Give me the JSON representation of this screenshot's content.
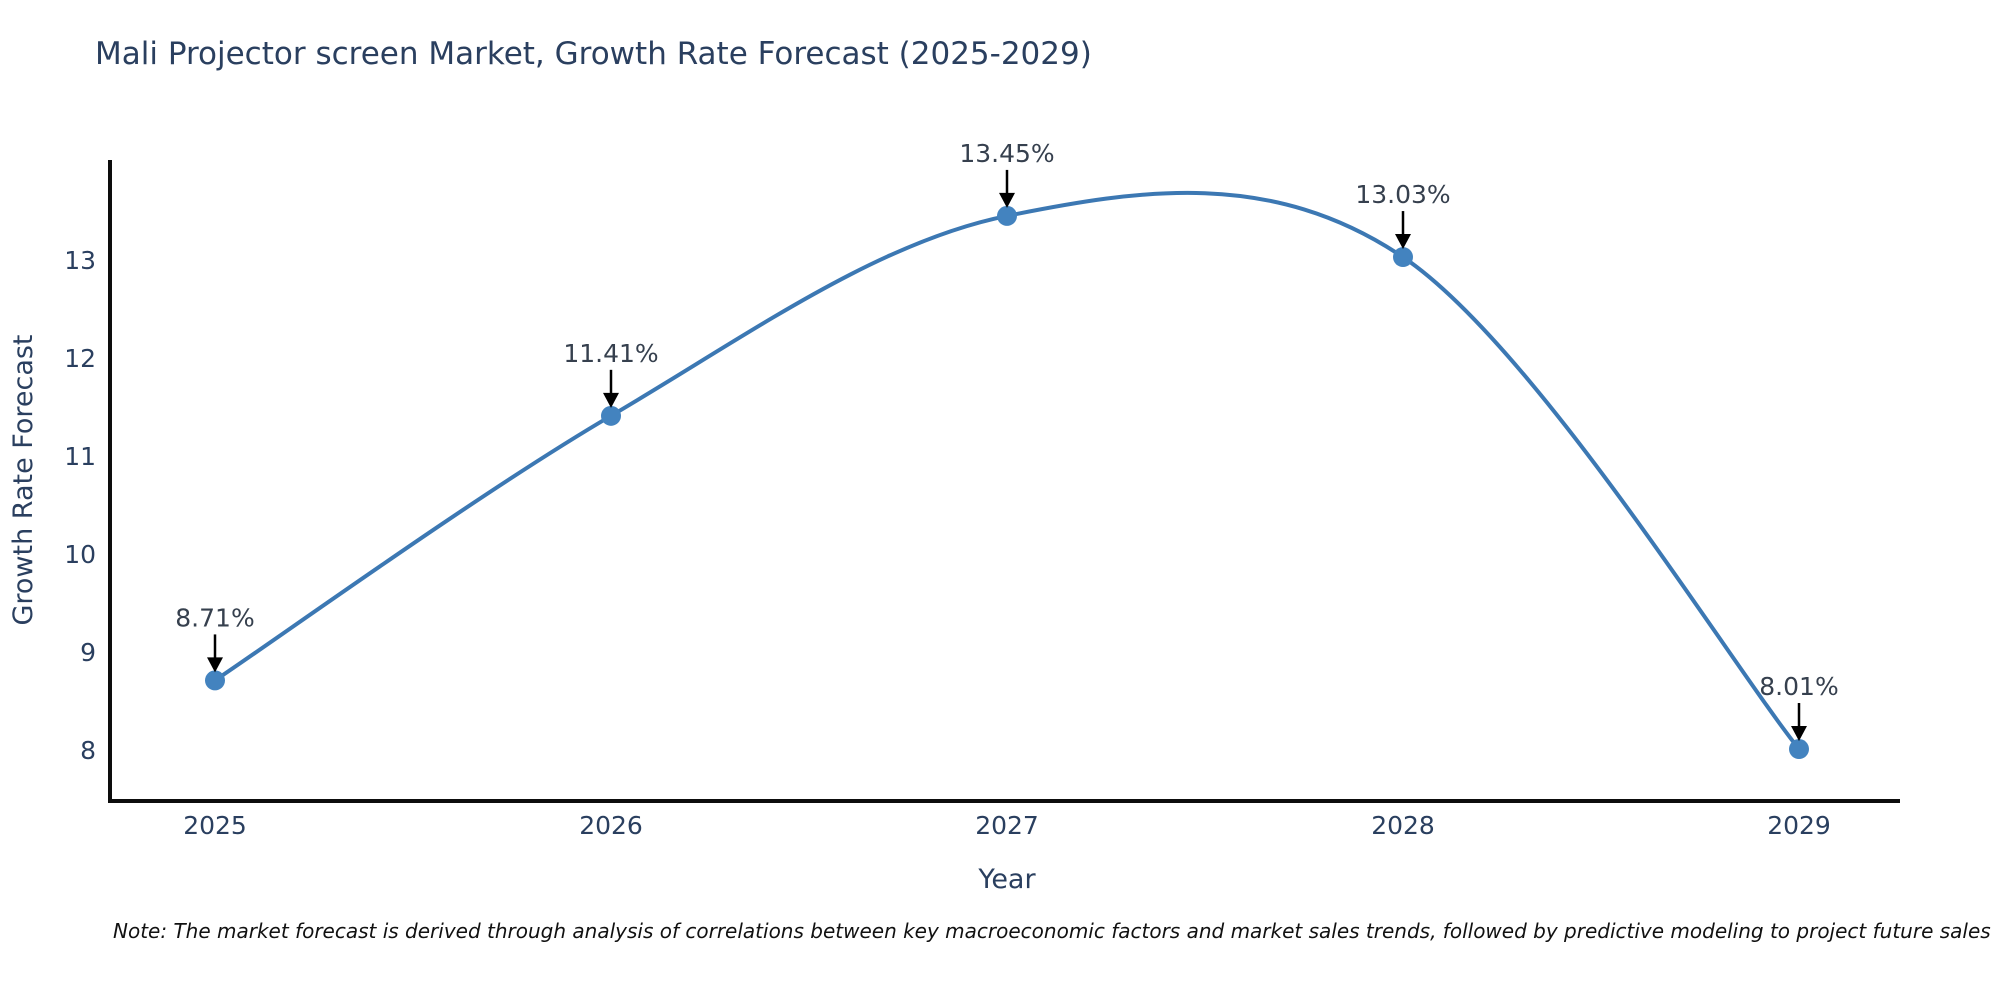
{
  "title": "Mali Projector screen Market, Growth Rate Forecast (2025-2029)",
  "note": "Note: The market forecast is derived through analysis of correlations between key macroeconomic factors and market sales trends, followed by predictive modeling to project future sales",
  "chart_data": {
    "type": "line",
    "line_shape": "spline",
    "title": "Mali Projector screen Market, Growth Rate Forecast (2025-2029)",
    "xlabel": "Year",
    "ylabel": "Growth Rate Forecast",
    "x": [
      "2025",
      "2026",
      "2027",
      "2028",
      "2029"
    ],
    "series": [
      {
        "name": "Growth Rate Forecast",
        "values": [
          8.71,
          11.41,
          13.45,
          13.03,
          8.01
        ]
      }
    ],
    "point_labels": [
      "8.71%",
      "11.41%",
      "13.45%",
      "13.03%",
      "8.01%"
    ],
    "yticks": [
      8,
      9,
      10,
      11,
      12,
      13
    ],
    "ylim": [
      7.5,
      14.5
    ],
    "grid": false,
    "legend": "none",
    "colors": {
      "line": "#3c78b3",
      "marker": "#4383bf",
      "axis": "#0d0d0d",
      "arrow": "#000000"
    }
  }
}
